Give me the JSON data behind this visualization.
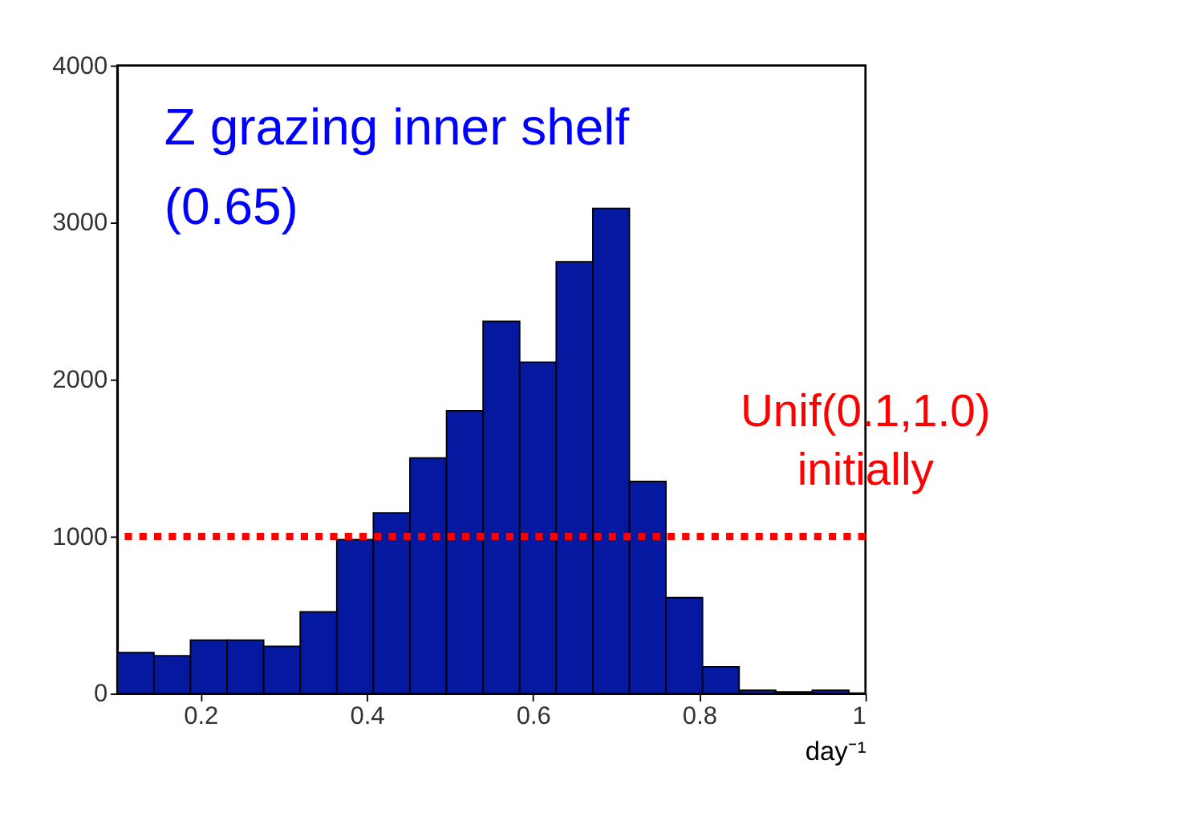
{
  "chart_data": {
    "type": "histogram",
    "bins": [
      0.1,
      0.144,
      0.188,
      0.232,
      0.276,
      0.32,
      0.364,
      0.408,
      0.452,
      0.496,
      0.54,
      0.584,
      0.628,
      0.672,
      0.716,
      0.76,
      0.804,
      0.848,
      0.892,
      0.936,
      0.98
    ],
    "values": [
      260,
      240,
      340,
      340,
      300,
      520,
      980,
      1150,
      1500,
      1800,
      2370,
      2110,
      2750,
      3090,
      1350,
      610,
      170,
      20,
      10,
      20
    ],
    "color": "#0519a0",
    "xlabel": "day⁻¹",
    "xlim": [
      0.1,
      1
    ],
    "xticks": [
      0.2,
      0.4,
      0.6,
      0.8,
      1
    ],
    "ylim": [
      0,
      4000
    ],
    "yticks": [
      0,
      1000,
      2000,
      3000,
      4000
    ],
    "grid": false,
    "ref_lines": [
      {
        "axis": "y",
        "value": 1000,
        "label": "Unif(0.1,1.0)\ninitially",
        "color": "#ff0000",
        "line_style": "dotted"
      }
    ],
    "annotations": [
      "Z grazing inner shelf\n(0.65)"
    ]
  }
}
